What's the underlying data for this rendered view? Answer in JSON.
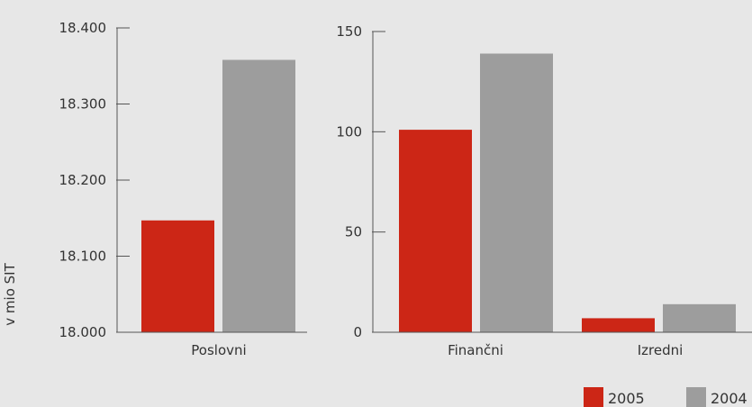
{
  "colors": {
    "series_2005": "#cc2616",
    "series_2004": "#9d9d9d",
    "axis": "#555555",
    "background": "#e7e7e7"
  },
  "chart_data": [
    {
      "type": "bar",
      "ylabel": "v mio SIT",
      "ylim": [
        18000,
        18400
      ],
      "yticks": [
        18000,
        18100,
        18200,
        18300,
        18400
      ],
      "ytick_labels": [
        "18.000",
        "18.100",
        "18.200",
        "18.300",
        "18.400"
      ],
      "categories": [
        "Poslovni"
      ],
      "series": [
        {
          "name": "2005",
          "values": [
            18147
          ]
        },
        {
          "name": "2004",
          "values": [
            18358
          ]
        }
      ]
    },
    {
      "type": "bar",
      "ylim": [
        0,
        150
      ],
      "yticks": [
        0,
        50,
        100,
        150
      ],
      "ytick_labels": [
        "0",
        "50",
        "100",
        "150"
      ],
      "categories": [
        "Finančni",
        "Izredni"
      ],
      "series": [
        {
          "name": "2005",
          "values": [
            101,
            7
          ]
        },
        {
          "name": "2004",
          "values": [
            139,
            14
          ]
        }
      ]
    }
  ],
  "legend": {
    "placement": "bottom-right",
    "items": [
      "2005",
      "2004"
    ]
  }
}
